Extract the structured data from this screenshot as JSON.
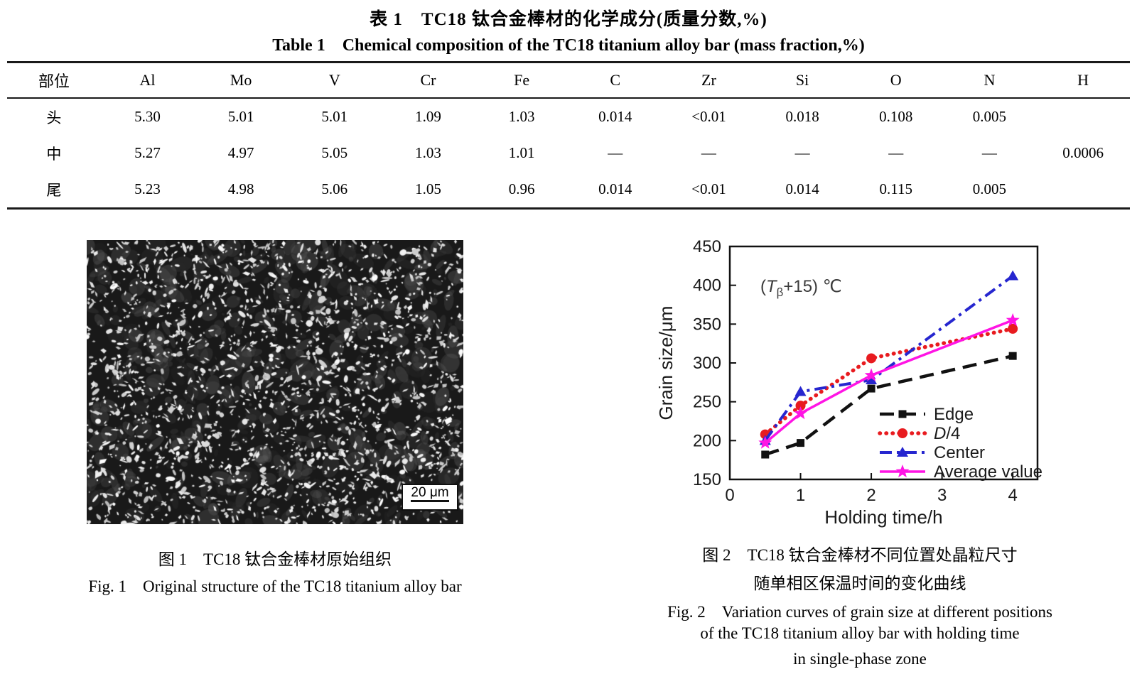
{
  "table": {
    "title_zh": "表 1　TC18 钛合金棒材的化学成分(质量分数,%)",
    "title_en": "Table 1　Chemical composition of the TC18 titanium alloy bar (mass fraction,%)",
    "columns": [
      "部位",
      "Al",
      "Mo",
      "V",
      "Cr",
      "Fe",
      "C",
      "Zr",
      "Si",
      "O",
      "N",
      "H"
    ],
    "rows": [
      [
        "头",
        "5.30",
        "5.01",
        "5.01",
        "1.09",
        "1.03",
        "0.014",
        "<0.01",
        "0.018",
        "0.108",
        "0.005",
        ""
      ],
      [
        "中",
        "5.27",
        "4.97",
        "5.05",
        "1.03",
        "1.01",
        "—",
        "—",
        "—",
        "—",
        "—",
        "0.0006"
      ],
      [
        "尾",
        "5.23",
        "4.98",
        "5.06",
        "1.05",
        "0.96",
        "0.014",
        "<0.01",
        "0.014",
        "0.115",
        "0.005",
        ""
      ]
    ]
  },
  "figure1": {
    "scale_label": "20 μm",
    "caption_zh": "图 1　TC18 钛合金棒材原始组织",
    "caption_en": "Fig. 1　Original structure of the TC18 titanium alloy bar"
  },
  "figure2": {
    "caption_zh_line1": "图 2　TC18 钛合金棒材不同位置处晶粒尺寸",
    "caption_zh_line2": "随单相区保温时间的变化曲线",
    "caption_en_line1": "Fig. 2　Variation curves of grain size at different positions",
    "caption_en_line2": "of the TC18 titanium alloy bar with holding time",
    "caption_en_line3": "in single-phase zone"
  },
  "chart_data": {
    "type": "line",
    "xlabel": "Holding time/h",
    "ylabel": "Grain size/μm",
    "xlim": [
      0,
      4.35
    ],
    "ylim": [
      150,
      450
    ],
    "xticks": [
      0,
      1,
      2,
      3,
      4
    ],
    "yticks": [
      150,
      200,
      250,
      300,
      350,
      400,
      450
    ],
    "grid": false,
    "legend_position": "lower right",
    "annotation": {
      "text_plain": "(Tβ+15) ℃",
      "parts": [
        {
          "text": "("
        },
        {
          "text": "T",
          "italic": true
        },
        {
          "text": "β",
          "sub": true
        },
        {
          "text": "+15) ℃"
        }
      ]
    },
    "x": [
      0.5,
      1,
      2,
      4
    ],
    "series": [
      {
        "name": "Edge",
        "name_parts": [
          {
            "text": "Edge"
          }
        ],
        "values": [
          182,
          197,
          267,
          309
        ],
        "color": "#111111",
        "line_style": "dashed",
        "marker": "square"
      },
      {
        "name": "D/4",
        "name_parts": [
          {
            "text": "D",
            "italic": true
          },
          {
            "text": "/4"
          }
        ],
        "values": [
          208,
          245,
          306,
          344
        ],
        "color": "#e81b1f",
        "line_style": "dotted",
        "marker": "circle"
      },
      {
        "name": "Center",
        "name_parts": [
          {
            "text": "Center"
          }
        ],
        "values": [
          200,
          263,
          278,
          412
        ],
        "color": "#2626cf",
        "line_style": "dashdot",
        "marker": "triangle"
      },
      {
        "name": "Average value",
        "name_parts": [
          {
            "text": "Average value"
          }
        ],
        "values": [
          197,
          235,
          284,
          355
        ],
        "color": "#ff14e4",
        "line_style": "solid",
        "marker": "star"
      }
    ]
  }
}
